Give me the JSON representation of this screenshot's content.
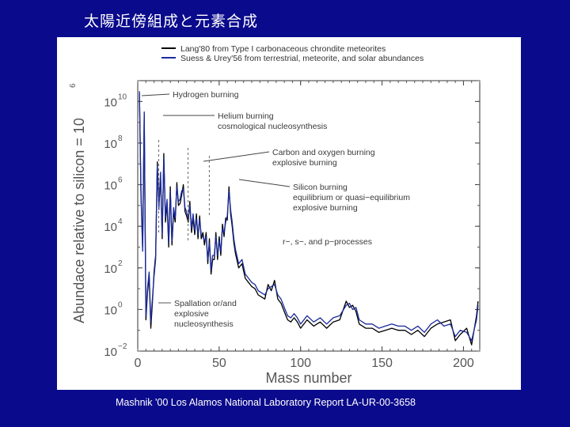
{
  "slide": {
    "title": "太陽近傍組成と元素合成",
    "caption": "Mashnik '00 Los Alamos National Laboratory Report LA-UR-00-3658"
  },
  "colors": {
    "background": "#0a0a8c",
    "panel": "#ffffff",
    "series_lang": "#000000",
    "series_suess": "#1a2a9c"
  },
  "chart_data": {
    "type": "line",
    "title": "",
    "xlabel": "Mass number",
    "ylabel_text": "Abundace relative to silicon = 10",
    "ylabel_exponent": "6",
    "xlim": [
      0,
      210
    ],
    "ylim_log10": [
      -2,
      11
    ],
    "yscale": "log",
    "x_ticks": [
      0,
      50,
      100,
      150,
      200
    ],
    "y_ticks": [
      {
        "base": "10",
        "exp": "10",
        "log": 10
      },
      {
        "base": "10",
        "exp": "8",
        "log": 8
      },
      {
        "base": "10",
        "exp": "6",
        "log": 6
      },
      {
        "base": "10",
        "exp": "4",
        "log": 4
      },
      {
        "base": "10",
        "exp": "2",
        "log": 2
      },
      {
        "base": "10",
        "exp": "0",
        "log": 0
      },
      {
        "base": "10",
        "exp": "−2",
        "log": -2
      }
    ],
    "legend": [
      {
        "label": "Lang'80 from Type I carbonaceous chrondite meteorites",
        "color": "#000000"
      },
      {
        "label": "Suess & Urey'56 from terrestrial, meteorite, and solar abundances",
        "color": "#1a2a9c"
      }
    ],
    "annotations": [
      {
        "lines": [
          "Hydrogen burning"
        ],
        "mass": 1,
        "log_abundance": 10.4
      },
      {
        "lines": [
          "Helium burning",
          "cosmological nucleosynthesis"
        ],
        "mass": 12,
        "log_abundance": 9.3
      },
      {
        "lines": [
          "Carbon and oxygen burning",
          "explosive burning"
        ],
        "mass": 28,
        "log_abundance": 7.0
      },
      {
        "lines": [
          "Silicon burning",
          "equilibrium or quasi−equilibrium",
          "explosive burning"
        ],
        "mass": 56,
        "log_abundance": 5.9
      },
      {
        "lines": [
          "r−, s−, and p−processes"
        ],
        "mass": 0,
        "log_abundance": 0
      },
      {
        "lines": [
          "Spallation or/and",
          "explosive",
          "nucleosynthesis"
        ],
        "mass": 9,
        "log_abundance": -0.1
      }
    ],
    "series": [
      {
        "name": "Lang'80",
        "x": [
          1,
          2,
          3,
          4,
          5,
          6,
          7,
          8,
          9,
          10,
          11,
          12,
          13,
          14,
          15,
          16,
          17,
          18,
          19,
          20,
          21,
          22,
          23,
          24,
          25,
          26,
          27,
          28,
          29,
          30,
          31,
          32,
          33,
          34,
          35,
          36,
          37,
          38,
          39,
          40,
          41,
          42,
          43,
          44,
          45,
          46,
          47,
          48,
          49,
          50,
          51,
          52,
          53,
          54,
          55,
          56,
          57,
          58,
          59,
          60,
          62,
          64,
          66,
          68,
          70,
          72,
          74,
          76,
          78,
          80,
          82,
          84,
          86,
          88,
          90,
          92,
          94,
          96,
          98,
          100,
          104,
          108,
          112,
          116,
          120,
          124,
          128,
          130,
          132,
          134,
          136,
          140,
          144,
          148,
          152,
          156,
          160,
          164,
          168,
          172,
          176,
          180,
          184,
          188,
          192,
          195,
          198,
          202,
          205,
          208,
          209
        ],
        "log_values": [
          10.4,
          5.6,
          3.0,
          9.4,
          -0.5,
          0.8,
          1.6,
          -0.9,
          0.3,
          1.8,
          2.6,
          7.1,
          5.0,
          6.4,
          3.4,
          7.5,
          4.2,
          5.1,
          3.0,
          5.9,
          3.1,
          4.7,
          4.2,
          6.1,
          5.0,
          5.1,
          5.5,
          6.0,
          4.7,
          4.5,
          4.2,
          5.2,
          3.7,
          4.4,
          3.6,
          4.6,
          3.4,
          4.5,
          3.4,
          3.7,
          3.1,
          3.7,
          2.2,
          3.4,
          1.7,
          2.4,
          2.4,
          3.7,
          2.4,
          3.5,
          2.6,
          4.1,
          3.5,
          4.4,
          4.3,
          5.9,
          4.6,
          4.0,
          3.2,
          2.7,
          2.0,
          2.2,
          1.5,
          1.3,
          1.1,
          1.0,
          0.7,
          0.6,
          0.5,
          1.2,
          0.9,
          1.4,
          0.5,
          0.3,
          -0.1,
          -0.5,
          -0.6,
          -0.4,
          -0.6,
          -0.9,
          -0.5,
          -0.8,
          -0.6,
          -0.9,
          -0.6,
          -0.5,
          0.4,
          0.1,
          0.2,
          -0.1,
          -0.7,
          -0.9,
          -0.9,
          -1.1,
          -1.0,
          -0.9,
          -1.0,
          -1.0,
          -1.2,
          -1.0,
          -1.3,
          -0.9,
          -0.7,
          -0.6,
          -0.5,
          -1.5,
          -1.2,
          -0.9,
          -1.7,
          -0.3,
          0.4
        ]
      },
      {
        "name": "Suess & Urey'56",
        "x": [
          1,
          2,
          3,
          4,
          5,
          6,
          7,
          8,
          9,
          10,
          11,
          12,
          13,
          14,
          15,
          16,
          17,
          18,
          19,
          20,
          21,
          22,
          23,
          24,
          25,
          26,
          27,
          28,
          29,
          30,
          31,
          32,
          33,
          34,
          35,
          36,
          37,
          38,
          39,
          40,
          41,
          42,
          43,
          44,
          45,
          46,
          47,
          48,
          49,
          50,
          51,
          52,
          53,
          54,
          55,
          56,
          57,
          58,
          59,
          60,
          62,
          64,
          66,
          68,
          70,
          72,
          74,
          76,
          78,
          80,
          82,
          84,
          86,
          88,
          90,
          92,
          94,
          96,
          98,
          100,
          104,
          108,
          112,
          116,
          120,
          124,
          128,
          130,
          132,
          134,
          136,
          140,
          144,
          148,
          152,
          156,
          160,
          164,
          168,
          172,
          176,
          180,
          184,
          188,
          192,
          195,
          198,
          202,
          205,
          208,
          209
        ],
        "log_values": [
          10.5,
          5.4,
          2.8,
          9.5,
          -0.3,
          1.0,
          1.8,
          -0.6,
          0.5,
          1.6,
          2.4,
          6.9,
          4.8,
          6.6,
          3.6,
          7.3,
          4.4,
          5.3,
          3.2,
          5.7,
          3.3,
          4.9,
          4.4,
          5.9,
          5.2,
          5.3,
          5.7,
          5.8,
          4.9,
          4.7,
          4.4,
          5.0,
          3.9,
          4.6,
          3.8,
          4.4,
          3.6,
          4.3,
          3.6,
          3.5,
          3.3,
          3.5,
          2.4,
          3.2,
          1.9,
          2.6,
          2.6,
          3.5,
          2.6,
          3.3,
          2.8,
          3.9,
          3.7,
          4.2,
          4.5,
          5.7,
          4.8,
          4.2,
          3.4,
          2.9,
          2.2,
          2.4,
          1.7,
          1.5,
          1.3,
          1.2,
          0.9,
          0.8,
          0.7,
          1.0,
          1.1,
          1.2,
          0.7,
          0.5,
          0.1,
          -0.3,
          -0.4,
          -0.2,
          -0.4,
          -0.7,
          -0.3,
          -0.6,
          -0.4,
          -0.7,
          -0.4,
          -0.3,
          0.2,
          0.3,
          0.0,
          0.1,
          -0.5,
          -0.7,
          -0.7,
          -0.9,
          -0.8,
          -0.7,
          -0.8,
          -0.8,
          -1.0,
          -0.8,
          -1.1,
          -0.7,
          -0.5,
          -0.8,
          -0.7,
          -1.3,
          -1.0,
          -1.1,
          -1.5,
          -0.5,
          0.2
        ]
      }
    ]
  }
}
